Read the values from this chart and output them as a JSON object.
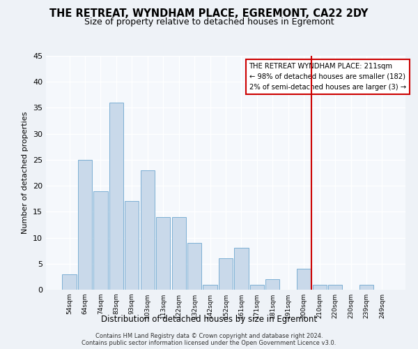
{
  "title": "THE RETREAT, WYNDHAM PLACE, EGREMONT, CA22 2DY",
  "subtitle": "Size of property relative to detached houses in Egremont",
  "xlabel": "Distribution of detached houses by size in Egremont",
  "ylabel": "Number of detached properties",
  "bar_labels": [
    "54sqm",
    "64sqm",
    "74sqm",
    "83sqm",
    "93sqm",
    "103sqm",
    "113sqm",
    "122sqm",
    "132sqm",
    "142sqm",
    "152sqm",
    "161sqm",
    "171sqm",
    "181sqm",
    "191sqm",
    "200sqm",
    "210sqm",
    "220sqm",
    "230sqm",
    "239sqm",
    "249sqm"
  ],
  "bar_values": [
    3,
    25,
    19,
    36,
    17,
    23,
    14,
    14,
    9,
    1,
    6,
    8,
    1,
    2,
    0,
    4,
    1,
    1,
    0,
    1,
    0
  ],
  "bar_color": "#c9d9ea",
  "bar_edge_color": "#7bafd4",
  "ylim": [
    0,
    45
  ],
  "yticks": [
    0,
    5,
    10,
    15,
    20,
    25,
    30,
    35,
    40,
    45
  ],
  "vline_x": 15.5,
  "vline_color": "#cc0000",
  "annotation_title": "THE RETREAT WYNDHAM PLACE: 211sqm",
  "annotation_line1": "← 98% of detached houses are smaller (182)",
  "annotation_line2": "2% of semi-detached houses are larger (3) →",
  "footnote1": "Contains HM Land Registry data © Crown copyright and database right 2024.",
  "footnote2": "Contains public sector information licensed under the Open Government Licence v3.0.",
  "bg_color": "#eef2f7",
  "plot_bg_color": "#f5f8fc",
  "title_fontsize": 10.5,
  "subtitle_fontsize": 9
}
